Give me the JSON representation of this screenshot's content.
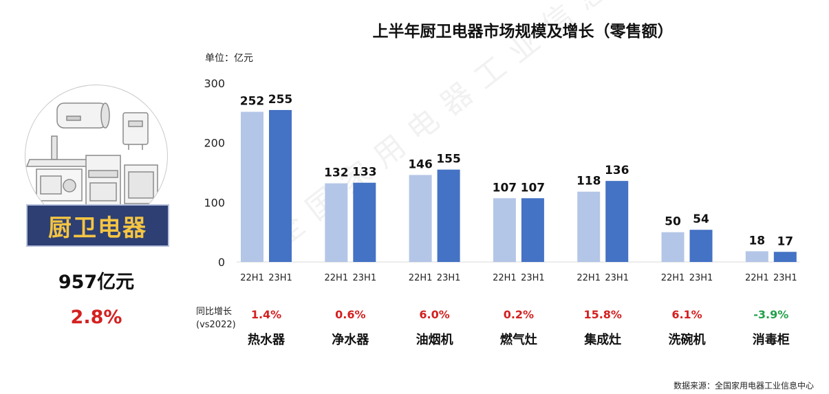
{
  "title": "上半年厨卫电器市场规模及增长（零售额）",
  "unit": "单位：亿元",
  "left_panel": {
    "banner": "厨卫电器",
    "total": "957亿元",
    "total_growth": "2.8%"
  },
  "growth_header_line1": "同比增长",
  "growth_header_line2": "(vs2022)",
  "source": "数据来源：全国家用电器工业信息中心",
  "watermark": "全国家用电器工业信息中心",
  "colors": {
    "series_22H1": "#b4c6e7",
    "series_23H1": "#4472c4",
    "positive": "#d42020",
    "negative": "#22a04a"
  },
  "chart_data": {
    "type": "bar",
    "title": "上半年厨卫电器市场规模及增长（零售额）",
    "ylabel": "单位：亿元",
    "ylim": [
      0,
      300
    ],
    "yticks": [
      "0",
      "100",
      "200",
      "300"
    ],
    "categories": [
      "热水器",
      "净水器",
      "油烟机",
      "燃气灶",
      "集成灶",
      "洗碗机",
      "消毒柜"
    ],
    "series": [
      {
        "name": "22H1",
        "values": [
          252,
          132,
          146,
          107,
          118,
          50,
          18
        ]
      },
      {
        "name": "23H1",
        "values": [
          255,
          133,
          155,
          107,
          136,
          54,
          17
        ]
      }
    ],
    "growth": [
      "1.4%",
      "0.6%",
      "6.0%",
      "0.2%",
      "15.8%",
      "6.1%",
      "-3.9%"
    ]
  }
}
